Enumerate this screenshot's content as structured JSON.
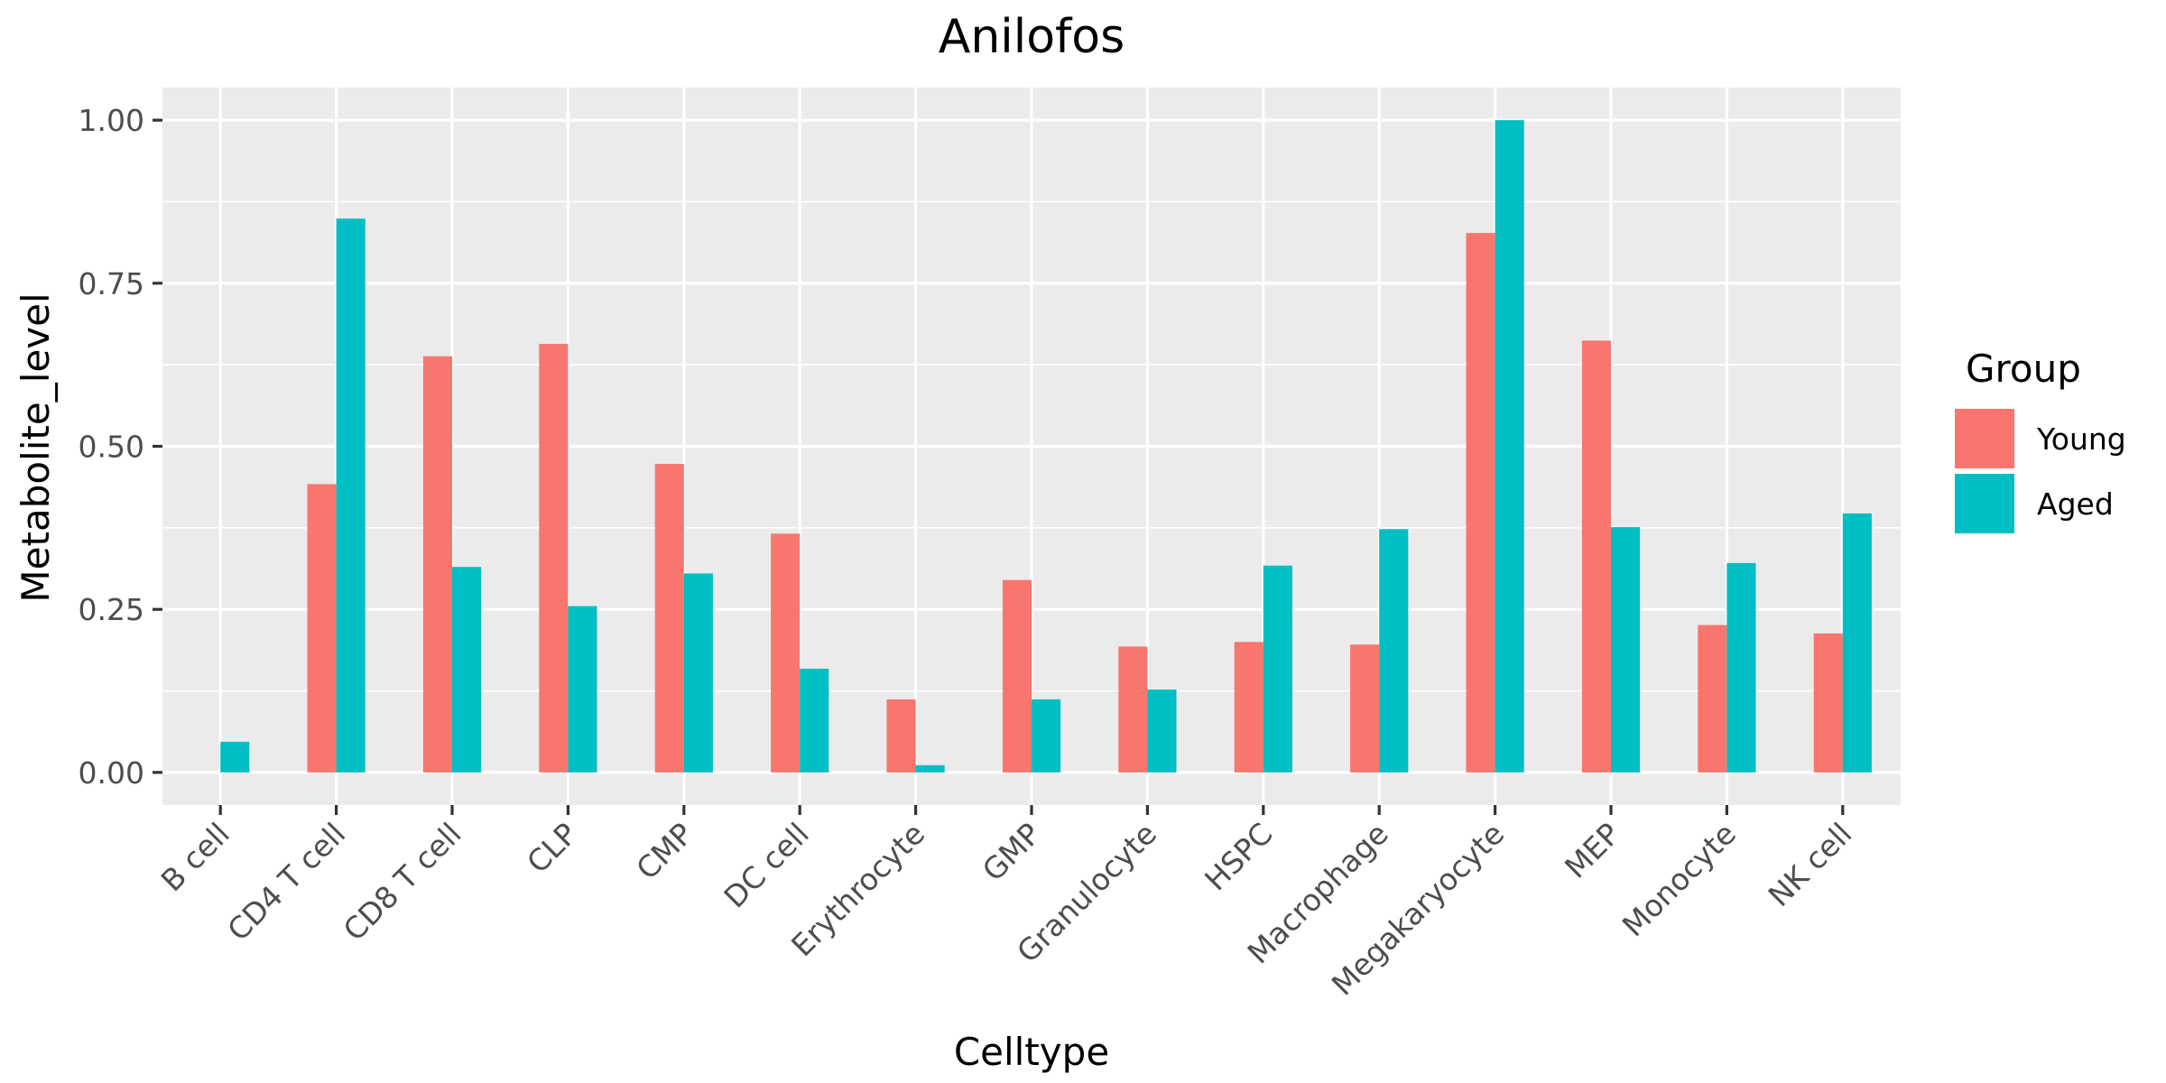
{
  "chart_data": {
    "type": "bar",
    "title": "Anilofos",
    "xlabel": "Celltype",
    "ylabel": "Metabolite_level",
    "categories": [
      "B cell",
      "CD4 T cell",
      "CD8 T cell",
      "CLP",
      "CMP",
      "DC cell",
      "Erythrocyte",
      "GMP",
      "Granulocyte",
      "HSPC",
      "Macrophage",
      "Megakaryocyte",
      "MEP",
      "Monocyte",
      "NK cell"
    ],
    "series": [
      {
        "name": "Young",
        "color": "#f8766d",
        "values": [
          0.0,
          0.442,
          0.638,
          0.657,
          0.473,
          0.366,
          0.112,
          0.295,
          0.193,
          0.2,
          0.196,
          0.827,
          0.662,
          0.226,
          0.213
        ]
      },
      {
        "name": "Aged",
        "color": "#00bfc4",
        "values": [
          0.047,
          0.849,
          0.315,
          0.255,
          0.305,
          0.159,
          0.011,
          0.112,
          0.127,
          0.317,
          0.373,
          1.0,
          0.376,
          0.321,
          0.397
        ]
      }
    ],
    "ylim": [
      -0.05,
      1.05
    ],
    "yticks": [
      0.0,
      0.25,
      0.5,
      0.75,
      1.0
    ],
    "ytick_labels": [
      "0.00",
      "0.25",
      "0.50",
      "0.75",
      "1.00"
    ],
    "grid": true,
    "legend": {
      "title": "Group",
      "position": "right"
    }
  }
}
